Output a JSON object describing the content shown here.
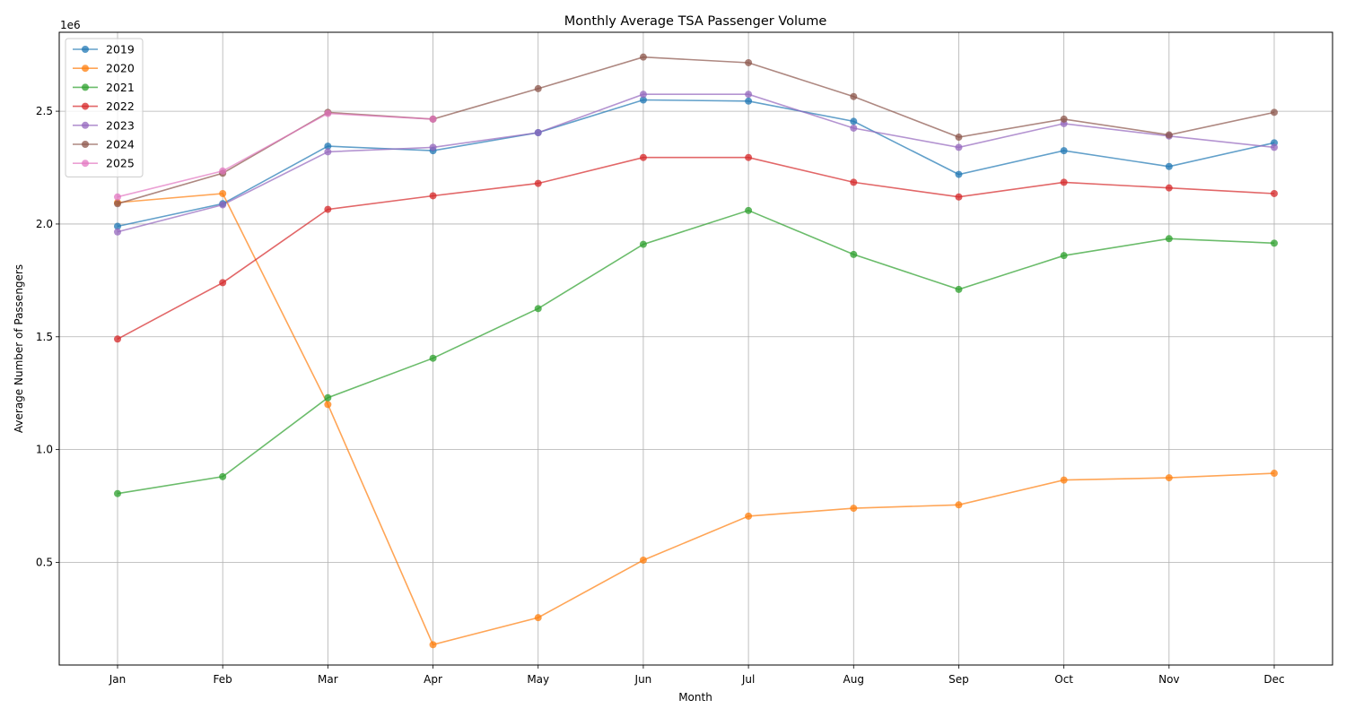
{
  "chart_data": {
    "type": "line",
    "title": "Monthly Average TSA Passenger Volume",
    "xlabel": "Month",
    "ylabel": "Average Number of Passengers",
    "y_offset_text": "1e6",
    "y_scale_note": "values in passengers",
    "ylim": [
      45000,
      2850000
    ],
    "yticks": [
      500000,
      1000000,
      1500000,
      2000000,
      2500000
    ],
    "ytick_labels": [
      "0.5",
      "1.0",
      "1.5",
      "2.0",
      "2.5"
    ],
    "categories": [
      "Jan",
      "Feb",
      "Mar",
      "Apr",
      "May",
      "Jun",
      "Jul",
      "Aug",
      "Sep",
      "Oct",
      "Nov",
      "Dec"
    ],
    "grid": true,
    "legend_position": "top-left",
    "series": [
      {
        "name": "2019",
        "color": "#1f77b4",
        "values": [
          1990000,
          2090000,
          2345000,
          2325000,
          2405000,
          2550000,
          2545000,
          2455000,
          2220000,
          2325000,
          2255000,
          2360000
        ]
      },
      {
        "name": "2020",
        "color": "#ff7f0e",
        "values": [
          2095000,
          2135000,
          1200000,
          135000,
          255000,
          510000,
          705000,
          740000,
          755000,
          865000,
          875000,
          895000
        ]
      },
      {
        "name": "2021",
        "color": "#2ca02c",
        "values": [
          805000,
          880000,
          1230000,
          1405000,
          1625000,
          1910000,
          2060000,
          1865000,
          1710000,
          1860000,
          1935000,
          1915000
        ]
      },
      {
        "name": "2022",
        "color": "#d62728",
        "values": [
          1490000,
          1740000,
          2065000,
          2125000,
          2180000,
          2295000,
          2295000,
          2185000,
          2120000,
          2185000,
          2160000,
          2135000
        ]
      },
      {
        "name": "2023",
        "color": "#9467bd",
        "values": [
          1965000,
          2085000,
          2320000,
          2340000,
          2405000,
          2575000,
          2575000,
          2425000,
          2340000,
          2445000,
          2390000,
          2340000
        ]
      },
      {
        "name": "2024",
        "color": "#8c564b",
        "values": [
          2090000,
          2225000,
          2495000,
          2465000,
          2600000,
          2740000,
          2715000,
          2565000,
          2385000,
          2465000,
          2395000,
          2495000
        ]
      },
      {
        "name": "2025",
        "color": "#e377c2",
        "values": [
          2120000,
          2235000,
          2490000,
          2465000,
          null,
          null,
          null,
          null,
          null,
          null,
          null,
          null
        ]
      }
    ]
  }
}
